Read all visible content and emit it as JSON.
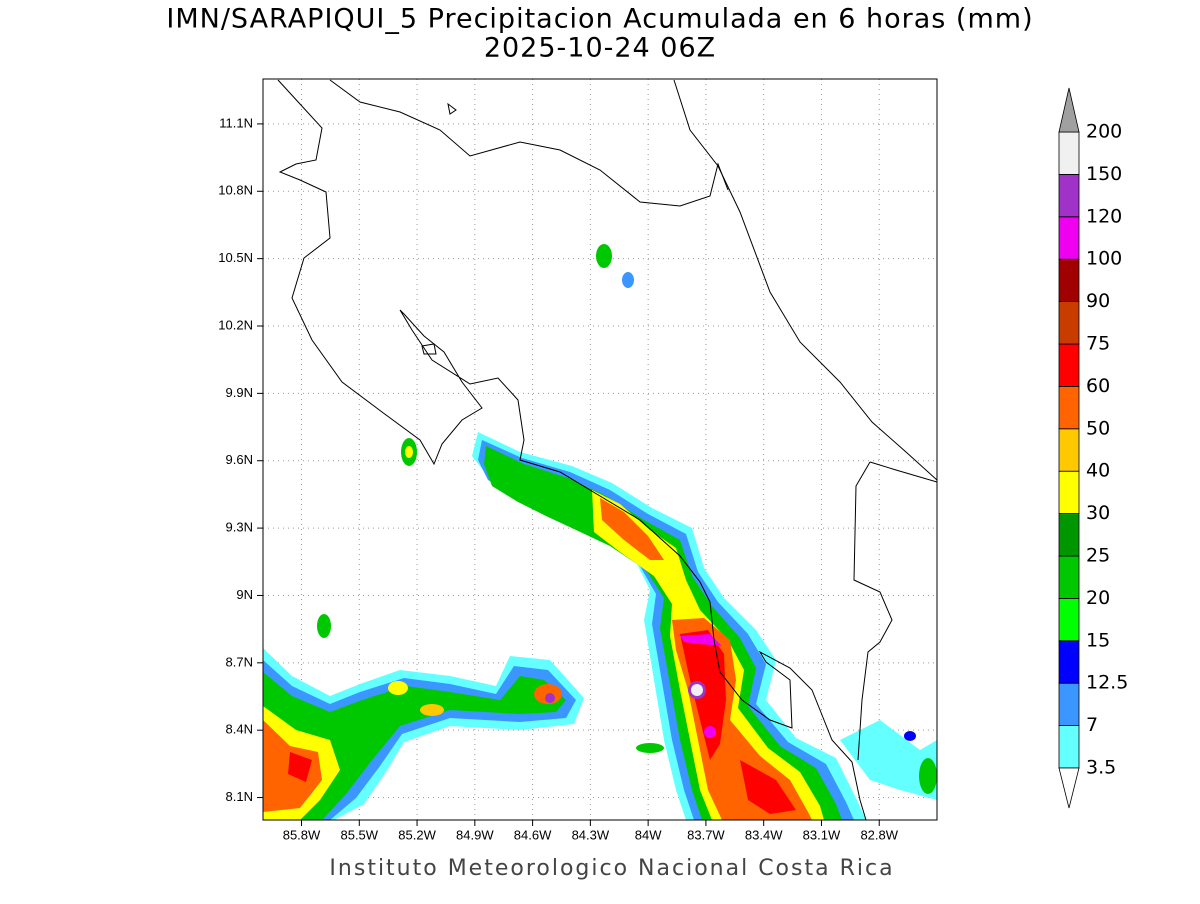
{
  "title": "IMN/SARAPIQUI_5 Precipitacion Acumulada en 6 horas (mm)",
  "subtitle": "2025-10-24 06Z",
  "footer": "Instituto Meteorologico Nacional Costa Rica",
  "map": {
    "lon_range": [
      -86.0,
      -82.5
    ],
    "lat_range": [
      8.0,
      11.3
    ],
    "lat_ticks": [
      {
        "value": 11.1,
        "label": "11.1N"
      },
      {
        "value": 10.8,
        "label": "10.8N"
      },
      {
        "value": 10.5,
        "label": "10.5N"
      },
      {
        "value": 10.2,
        "label": "10.2N"
      },
      {
        "value": 9.9,
        "label": "9.9N"
      },
      {
        "value": 9.6,
        "label": "9.6N"
      },
      {
        "value": 9.3,
        "label": "9.3N"
      },
      {
        "value": 9,
        "label": "9N"
      },
      {
        "value": 8.7,
        "label": "8.7N"
      },
      {
        "value": 8.4,
        "label": "8.4N"
      },
      {
        "value": 8.1,
        "label": "8.1N"
      }
    ],
    "lon_ticks": [
      {
        "value": -85.8,
        "label": "85.8W"
      },
      {
        "value": -85.5,
        "label": "85.5W"
      },
      {
        "value": -85.2,
        "label": "85.2W"
      },
      {
        "value": -84.9,
        "label": "84.9W"
      },
      {
        "value": -84.6,
        "label": "84.6W"
      },
      {
        "value": -84.3,
        "label": "84.3W"
      },
      {
        "value": -84,
        "label": "84W"
      },
      {
        "value": -83.7,
        "label": "83.7W"
      },
      {
        "value": -83.4,
        "label": "83.4W"
      },
      {
        "value": -83.1,
        "label": "83.1W"
      },
      {
        "value": -82.8,
        "label": "82.8W"
      }
    ],
    "grid": true
  },
  "colorbar": {
    "levels": [
      3.5,
      7,
      12.5,
      15,
      20,
      25,
      30,
      40,
      50,
      60,
      75,
      90,
      100,
      120,
      150,
      200
    ],
    "colors": [
      "#ffffff",
      "#64ffff",
      "#3c96ff",
      "#0000ff",
      "#00ff00",
      "#00c800",
      "#009600",
      "#ffff00",
      "#ffc800",
      "#ff6400",
      "#ff0000",
      "#c83c00",
      "#a00000",
      "#f000f0",
      "#a032c8",
      "#f0f0f0",
      "#a0a0a0"
    ]
  }
}
